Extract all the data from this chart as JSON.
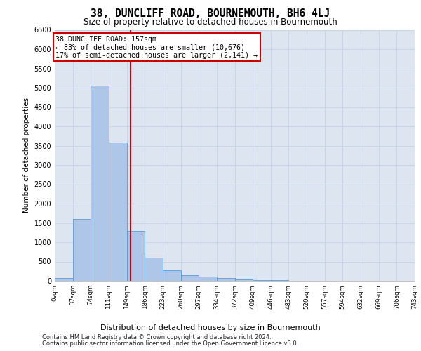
{
  "title": "38, DUNCLIFF ROAD, BOURNEMOUTH, BH6 4LJ",
  "subtitle": "Size of property relative to detached houses in Bournemouth",
  "xlabel": "Distribution of detached houses by size in Bournemouth",
  "ylabel": "Number of detached properties",
  "footer1": "Contains HM Land Registry data © Crown copyright and database right 2024.",
  "footer2": "Contains public sector information licensed under the Open Government Licence v3.0.",
  "annotation_title": "38 DUNCLIFF ROAD: 157sqm",
  "annotation_line1": "← 83% of detached houses are smaller (10,676)",
  "annotation_line2": "17% of semi-detached houses are larger (2,141) →",
  "property_size": 157,
  "bin_edges": [
    0,
    37,
    74,
    111,
    149,
    186,
    223,
    260,
    297,
    334,
    372,
    409,
    446,
    483,
    520,
    557,
    594,
    632,
    669,
    706,
    743
  ],
  "bar_heights": [
    70,
    1600,
    5050,
    3580,
    1300,
    600,
    270,
    140,
    110,
    70,
    40,
    20,
    10,
    5,
    3,
    2,
    1,
    1,
    0,
    0
  ],
  "bar_color": "#aec6e8",
  "bar_edge_color": "#5b9bd5",
  "vline_color": "#cc0000",
  "vline_x": 157,
  "annotation_box_color": "#cc0000",
  "ylim": [
    0,
    6500
  ],
  "yticks": [
    0,
    500,
    1000,
    1500,
    2000,
    2500,
    3000,
    3500,
    4000,
    4500,
    5000,
    5500,
    6000,
    6500
  ],
  "grid_color": "#c8d4e8",
  "bg_color": "#dde6f0",
  "tick_labels": [
    "0sqm",
    "37sqm",
    "74sqm",
    "111sqm",
    "149sqm",
    "186sqm",
    "223sqm",
    "260sqm",
    "297sqm",
    "334sqm",
    "372sqm",
    "409sqm",
    "446sqm",
    "483sqm",
    "520sqm",
    "557sqm",
    "594sqm",
    "632sqm",
    "669sqm",
    "706sqm",
    "743sqm"
  ],
  "title_fontsize": 10.5,
  "subtitle_fontsize": 8.5
}
